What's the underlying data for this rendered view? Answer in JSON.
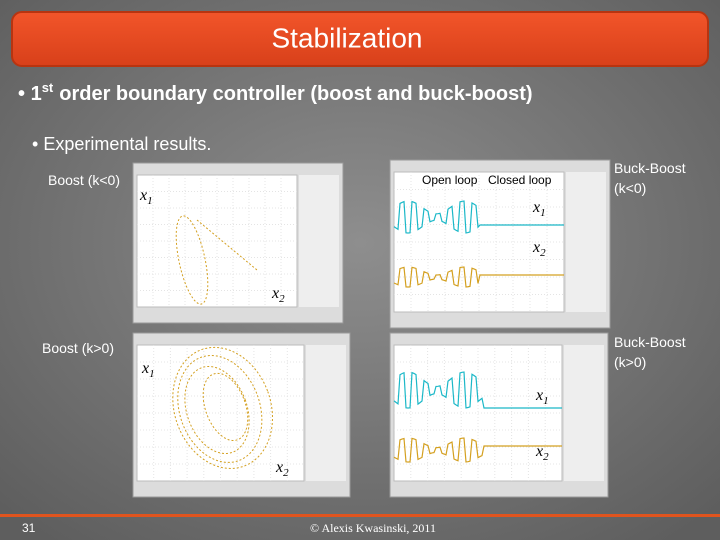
{
  "header": {
    "title": "Stabilization"
  },
  "bullet": {
    "number": "1",
    "superscript": "st",
    "text": "order boundary controller (boost and buck-boost)"
  },
  "sub_bullet": "Experimental results.",
  "panels": [
    {
      "label": "Boost (k<0)",
      "signals": [
        {
          "base": "x",
          "sub": "1"
        },
        {
          "base": "x",
          "sub": "2"
        }
      ]
    },
    {
      "label_lines": [
        "Buck-Boost",
        "(k<0)"
      ],
      "annotations": [
        "Open loop",
        "Closed loop"
      ],
      "signals": [
        {
          "base": "x",
          "sub": "1"
        },
        {
          "base": "x",
          "sub": "2"
        }
      ]
    },
    {
      "label": "Boost (k>0)",
      "signals": [
        {
          "base": "x",
          "sub": "1"
        },
        {
          "base": "x",
          "sub": "2"
        }
      ]
    },
    {
      "label_lines": [
        "Buck-Boost",
        "(k>0)"
      ],
      "signals": [
        {
          "base": "x",
          "sub": "1"
        },
        {
          "base": "x",
          "sub": "2"
        }
      ]
    }
  ],
  "footer": {
    "page": "31",
    "copyright": "© Alexis Kwasinski, 2011"
  }
}
